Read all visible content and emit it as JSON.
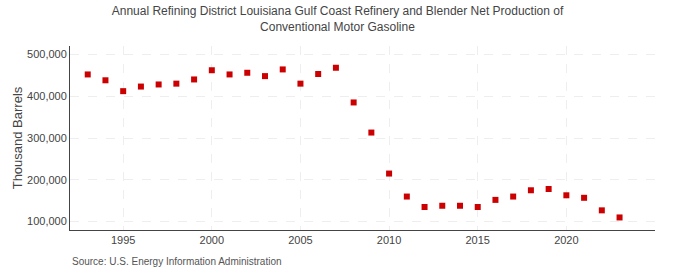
{
  "chart_data": {
    "type": "scatter",
    "title": "Annual Refining District Louisiana Gulf Coast Refinery and Blender Net Production of\nConventional Motor Gasoline",
    "ylabel": "Thousand Barrels",
    "annotations": [
      "Source: U.S. Energy Information Administration"
    ],
    "x": [
      1993,
      1994,
      1995,
      1996,
      1997,
      1998,
      1999,
      2000,
      2001,
      2002,
      2003,
      2004,
      2005,
      2006,
      2007,
      2008,
      2009,
      2010,
      2011,
      2012,
      2013,
      2014,
      2015,
      2016,
      2017,
      2018,
      2019,
      2020,
      2021,
      2022,
      2023
    ],
    "values": [
      452000,
      438000,
      412000,
      423000,
      428000,
      430000,
      440000,
      462000,
      452000,
      456000,
      448000,
      464000,
      430000,
      453000,
      468000,
      385000,
      313000,
      215000,
      160000,
      135000,
      138000,
      138000,
      135000,
      152000,
      160000,
      175000,
      178000,
      163000,
      157000,
      127000,
      110000
    ],
    "color": "#cc0000",
    "marker": "square",
    "xlim": [
      1992,
      2025
    ],
    "xticks": [
      1995,
      2000,
      2005,
      2010,
      2015,
      2020
    ],
    "ylim": [
      80000,
      520000
    ],
    "yticks": [
      {
        "value": 100000,
        "label": "100,000"
      },
      {
        "value": 200000,
        "label": "200,000"
      },
      {
        "value": 300000,
        "label": "300,000"
      },
      {
        "value": 400000,
        "label": "400,000"
      },
      {
        "value": 500000,
        "label": "500,000"
      }
    ],
    "grid": true
  }
}
